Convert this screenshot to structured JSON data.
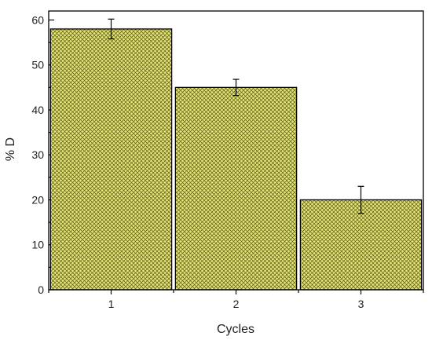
{
  "chart_data": {
    "type": "bar",
    "xlabel": "Cycles",
    "ylabel": "% D",
    "categories": [
      "1",
      "2",
      "3"
    ],
    "values": [
      58,
      45,
      20
    ],
    "errors": [
      2.2,
      1.8,
      3.0
    ],
    "ylim": [
      0,
      62
    ],
    "yticks": [
      0,
      10,
      20,
      30,
      40,
      50,
      60
    ],
    "grid": false,
    "colors": {
      "bar_fill": "#e6e67a",
      "hatch": "#6b6b1f",
      "edge": "#000000"
    }
  }
}
